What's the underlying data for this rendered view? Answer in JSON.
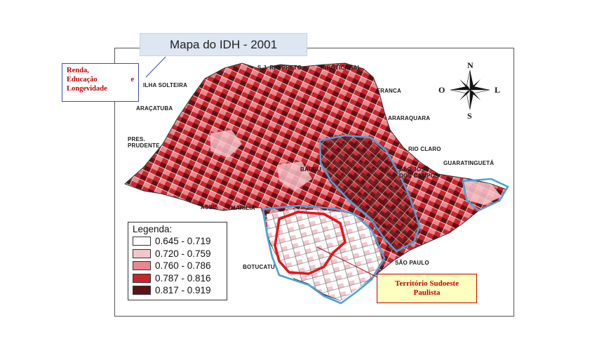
{
  "title": "Mapa do IDH - 2001",
  "indicator_box": {
    "line1": "Renda,",
    "line2a": "Educação",
    "line2b": "e",
    "line3": "Longevidade"
  },
  "cities": {
    "sjrp": "S.J. RIO PRETO",
    "jaboticabal": "JABOTICABAL",
    "ilha": "ILHA SOLTEIRA",
    "franca": "FRANCA",
    "aracatuba": "ARAÇATUBA",
    "araraquara": "ARARAQUARA",
    "pres1": "PRES.",
    "pres2": "PRUDENTE",
    "rioclaro": "RIO CLARO",
    "guaratingueta": "GUARATINGUETÁ",
    "sjc1": "SÃO JOSÉ",
    "sjc2": "DOS CAMPOS",
    "bauru": "BAURU",
    "assis": "ASSIS",
    "marilia": "MARÍLIA",
    "botucatu": "BOTUCATU",
    "saopaulo": "SÃO PAULO"
  },
  "compass": {
    "n": "N",
    "s": "S",
    "l": "L",
    "o": "O"
  },
  "legend": {
    "title": "Legenda:",
    "items": [
      {
        "range": "0.645 - 0.719",
        "color": "#ffffff"
      },
      {
        "range": "0.720 - 0.759",
        "color": "#f4c6cc"
      },
      {
        "range": "0.760 - 0.786",
        "color": "#e8878f"
      },
      {
        "range": "0.787 - 0.816",
        "color": "#c8262c"
      },
      {
        "range": "0.817 - 0.919",
        "color": "#5e1216"
      }
    ]
  },
  "territory_label": {
    "line1": "Território Sudoeste",
    "line2": "Paulista"
  },
  "colors": {
    "region_outline": "#4aa3d6",
    "highlight_outline": "#e8141a",
    "map_border": "#555555"
  }
}
